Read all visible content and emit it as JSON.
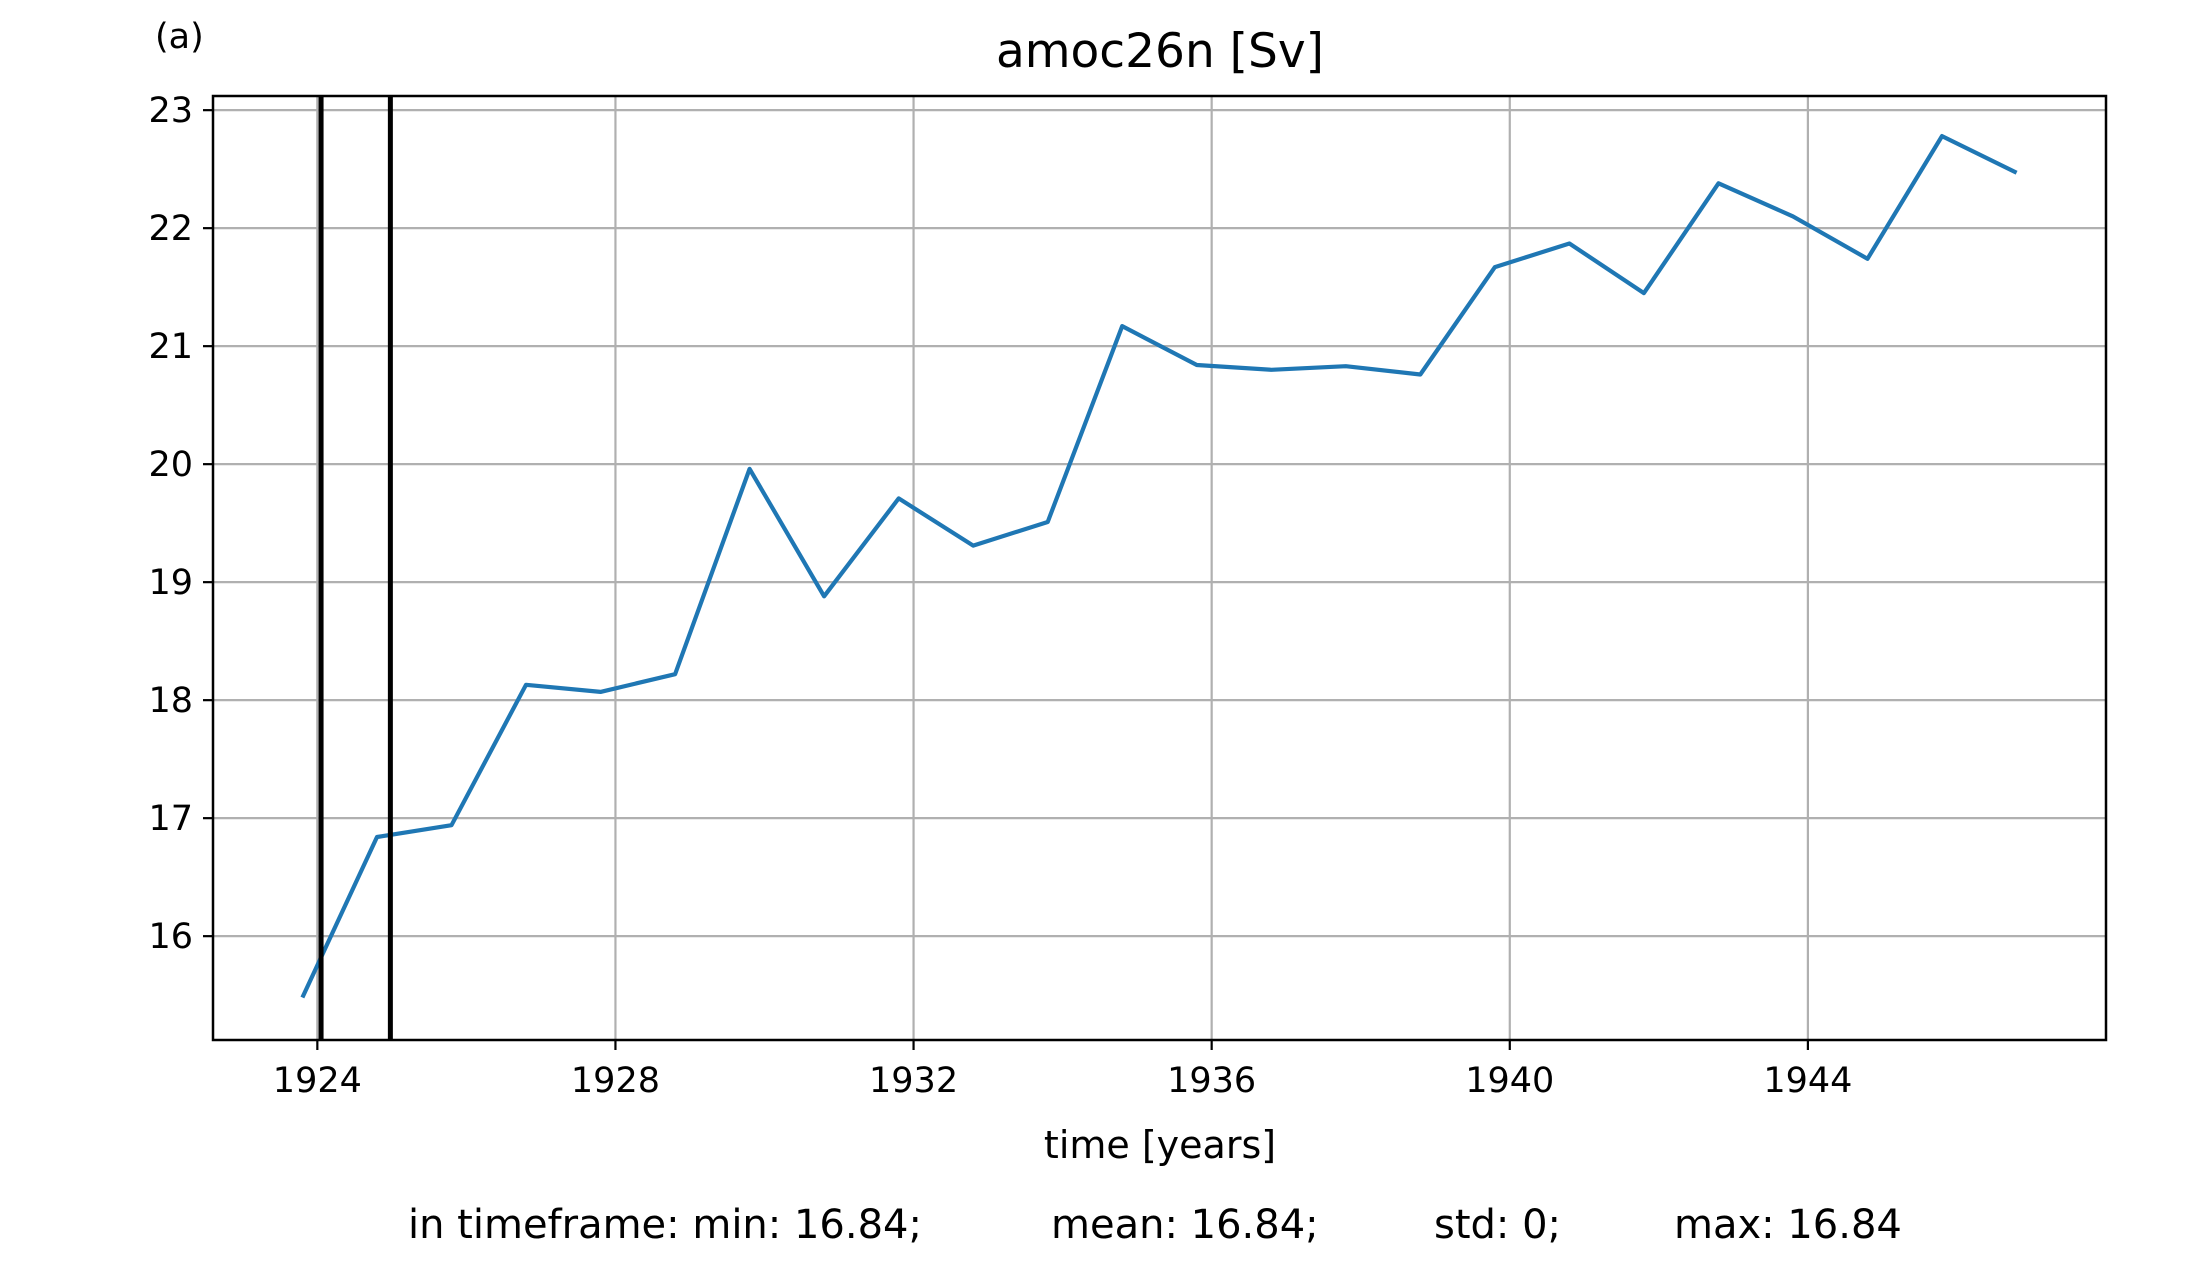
{
  "panel_label": "(a)",
  "stats": {
    "min": "in timeframe: min: 16.84;",
    "mean": "mean: 16.84;",
    "std": "std: 0;",
    "max": "max: 16.84"
  },
  "chart_data": {
    "type": "line",
    "title": "amoc26n [Sv]",
    "xlabel": "time [years]",
    "ylabel": "",
    "xlim": [
      1922.6,
      1948.0
    ],
    "ylim": [
      15.12,
      23.12
    ],
    "x_ticks": [
      1924,
      1928,
      1932,
      1936,
      1940,
      1944
    ],
    "x_tick_labels": [
      "1924",
      "1928",
      "1932",
      "1936",
      "1940",
      "1944"
    ],
    "y_ticks": [
      16,
      17,
      18,
      19,
      20,
      21,
      22,
      23
    ],
    "y_tick_labels": [
      "16",
      "17",
      "18",
      "19",
      "20",
      "21",
      "22",
      "23"
    ],
    "grid": true,
    "series": [
      {
        "color": "#1f77b4",
        "x": [
          1923.8,
          1924.8,
          1925.8,
          1926.8,
          1927.8,
          1928.8,
          1929.8,
          1930.8,
          1931.8,
          1932.8,
          1933.8,
          1934.8,
          1935.8,
          1936.8,
          1937.8,
          1938.8,
          1939.8,
          1940.8,
          1941.8,
          1942.8,
          1943.8,
          1944.8,
          1945.8,
          1946.8
        ],
        "y": [
          15.48,
          16.84,
          16.94,
          18.13,
          18.07,
          18.22,
          19.96,
          18.88,
          19.71,
          19.31,
          19.51,
          21.17,
          20.84,
          20.8,
          20.83,
          20.76,
          21.67,
          21.87,
          21.45,
          22.38,
          22.1,
          21.74,
          22.78,
          22.47
        ]
      }
    ],
    "vlines": {
      "color": "#000000",
      "x": [
        1924.05,
        1924.98
      ]
    }
  }
}
